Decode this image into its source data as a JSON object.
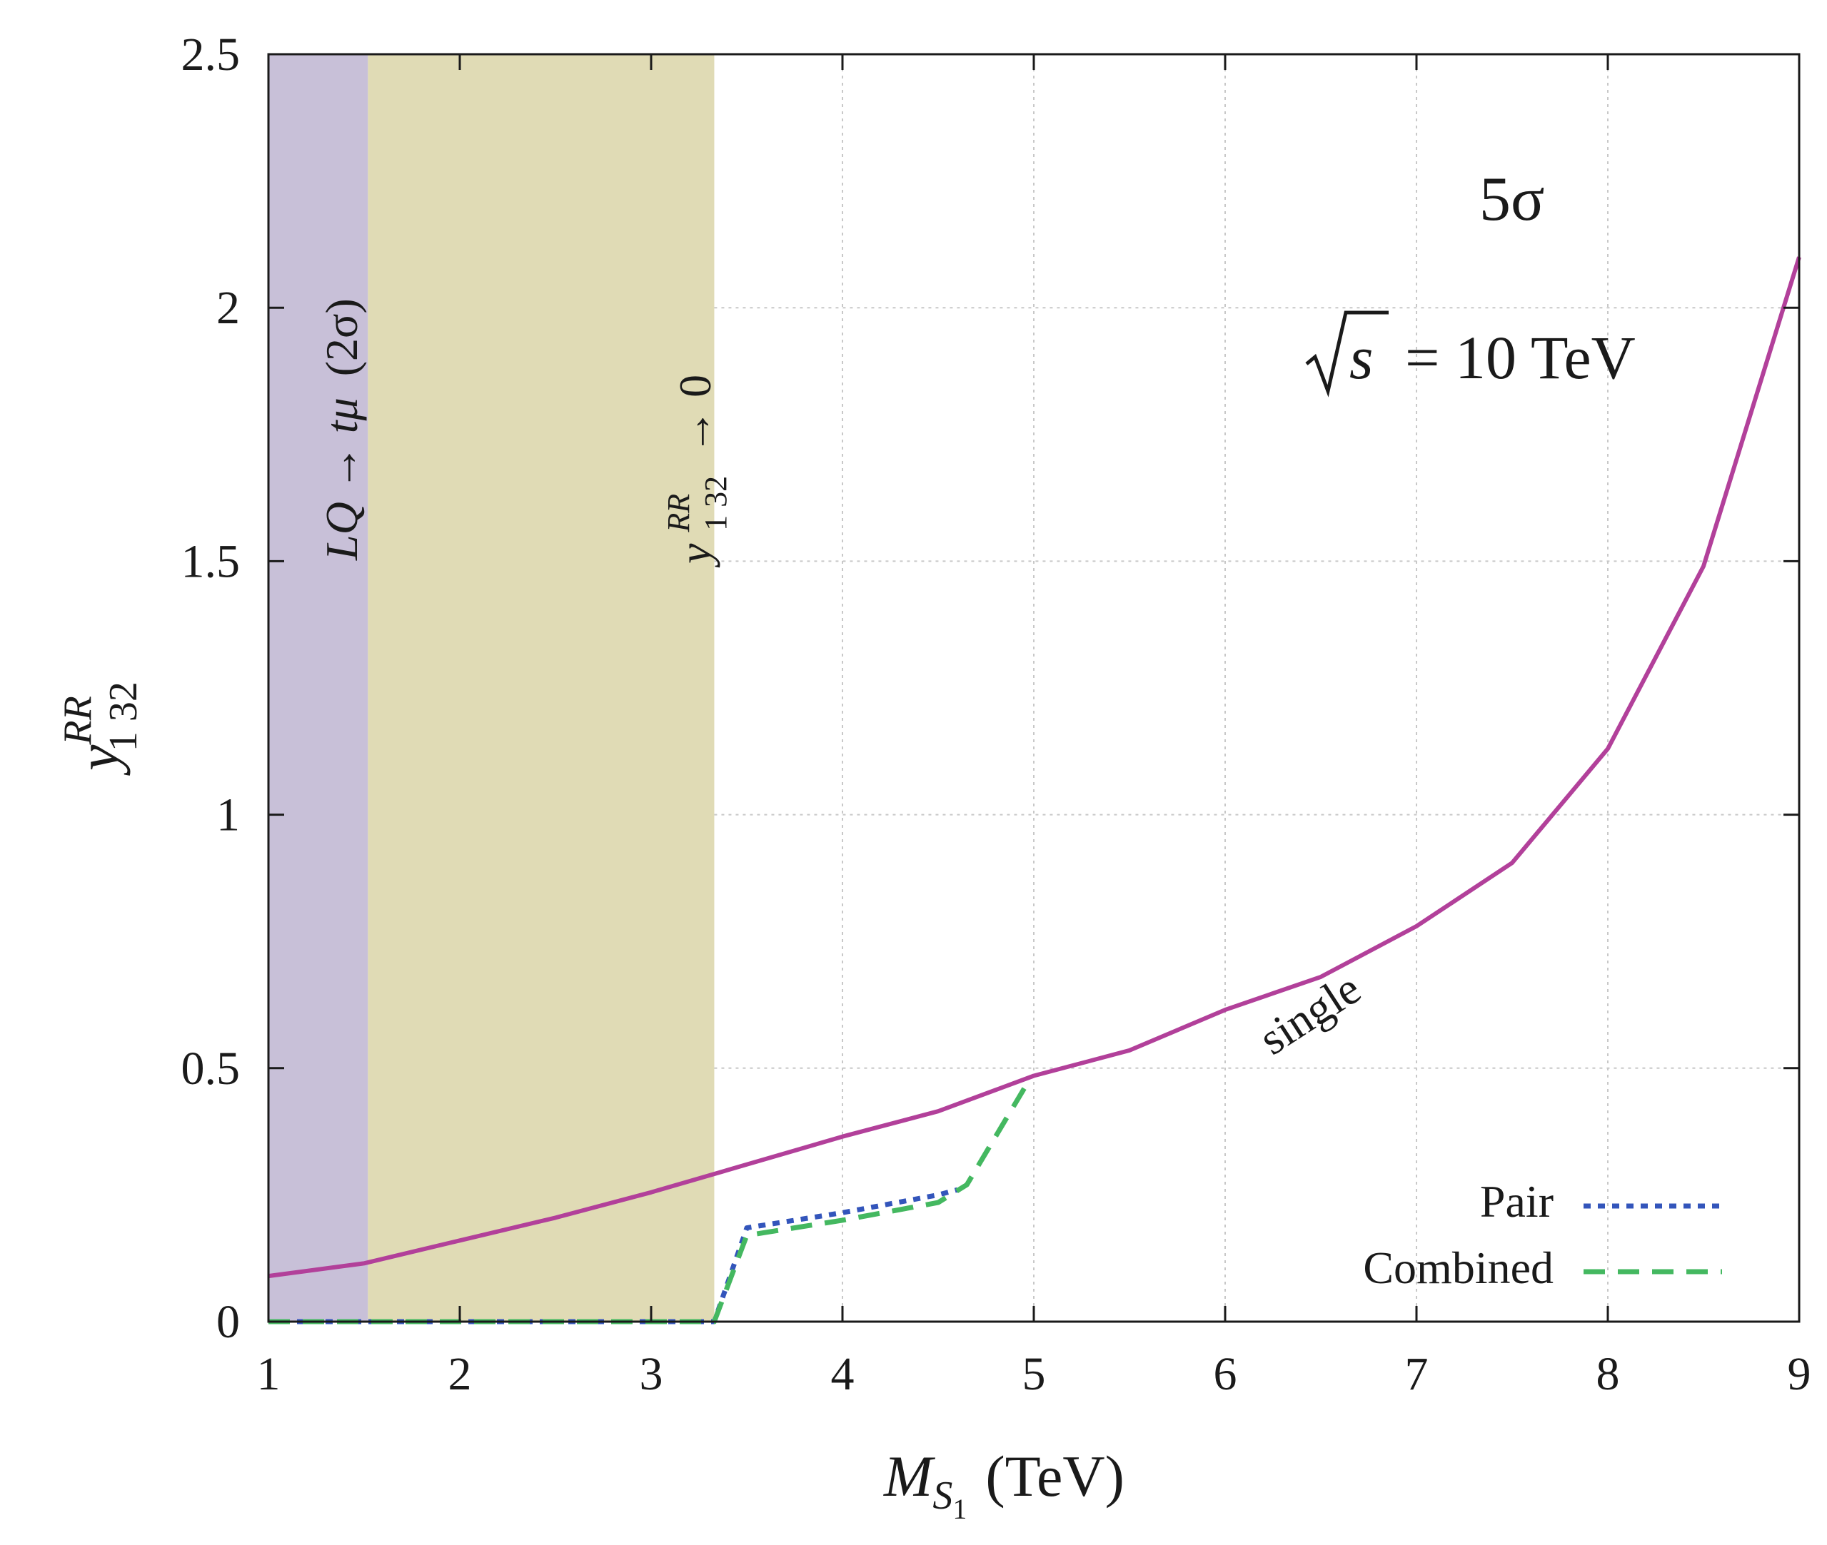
{
  "chart_data": {
    "type": "line",
    "xlabel": {
      "main": "M",
      "sub": "S",
      "subsub": "1",
      "unit": "(TeV)"
    },
    "ylabel": {
      "main": "y",
      "sup": "RR",
      "sub": "1 32"
    },
    "xlim": [
      1,
      9
    ],
    "ylim": [
      0,
      2.5
    ],
    "x_ticks": [
      1,
      2,
      3,
      4,
      5,
      6,
      7,
      8,
      9
    ],
    "y_ticks": [
      0,
      0.5,
      1,
      1.5,
      2,
      2.5
    ],
    "x_tick_labels": [
      "1",
      "2",
      "3",
      "4",
      "5",
      "6",
      "7",
      "8",
      "9"
    ],
    "y_tick_labels": [
      "0",
      "0.5",
      "1",
      "1.5",
      "2",
      "2.5"
    ],
    "grid": true,
    "regions": [
      {
        "name": "LQ-tmu-excluded",
        "x_from": 1,
        "x_to": 1.52,
        "color": "#c8c0d8",
        "label": {
          "main": "LQ → tμ",
          "paren": "(2σ)"
        }
      },
      {
        "name": "coupling-zero-region",
        "x_from": 1.52,
        "x_to": 3.33,
        "color": "#e0dbb5",
        "label": {
          "y": "y",
          "sup": "RR",
          "sub": "1 32",
          "arrow": "→ 0"
        }
      }
    ],
    "annotations": {
      "significance": "5σ",
      "energy": {
        "prefix": "s",
        "suffix": "= 10 TeV"
      },
      "single_label": "single"
    },
    "series": [
      {
        "name": "single",
        "legend": false,
        "color": "#b2409a",
        "style": "solid",
        "x": [
          1,
          1.5,
          2,
          2.5,
          3,
          3.5,
          4,
          4.5,
          5,
          5.5,
          6,
          6.5,
          7,
          7.5,
          8,
          8.5,
          9
        ],
        "y": [
          0.09,
          0.115,
          0.16,
          0.205,
          0.255,
          0.31,
          0.365,
          0.415,
          0.485,
          0.535,
          0.615,
          0.68,
          0.78,
          0.905,
          1.13,
          1.49,
          2.1
        ]
      },
      {
        "name": "Pair",
        "legend": true,
        "color": "#3355bb",
        "style": "dotted",
        "x": [
          1,
          3.33,
          3.5,
          4,
          4.5,
          4.6
        ],
        "y": [
          0,
          0,
          0.185,
          0.215,
          0.25,
          0.26
        ]
      },
      {
        "name": "Combined",
        "legend": true,
        "color": "#44b860",
        "style": "dashed",
        "x": [
          1,
          3.33,
          3.5,
          4,
          4.5,
          4.65,
          4.95
        ],
        "y": [
          0,
          0,
          0.17,
          0.2,
          0.235,
          0.27,
          0.46
        ]
      }
    ]
  }
}
